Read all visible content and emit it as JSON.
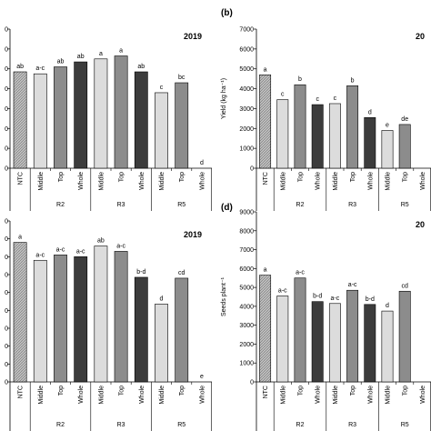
{
  "colors": {
    "ntc_hatch": "#9a9a9a",
    "middle": "#dcdcdc",
    "top": "#8c8c8c",
    "whole": "#3c3c3c",
    "axis": "#000000"
  },
  "chart_data": [
    {
      "panel_label": "",
      "type": "bar",
      "title": "2019",
      "ylabel": "",
      "ylim": [
        0,
        7000
      ],
      "yticks_shown": [
        "0",
        "0",
        "0",
        "0",
        "0",
        "0",
        "0",
        "0"
      ],
      "categories": [
        "NTC",
        "Middle",
        "Top",
        "Whole",
        "Middle",
        "Top",
        "Whole",
        "Middle",
        "Top",
        "Whole"
      ],
      "groups": [
        "R2",
        "R3",
        "R5"
      ],
      "values": [
        4850,
        4750,
        5100,
        5350,
        5500,
        5650,
        4850,
        3800,
        4300,
        0
      ],
      "letters": [
        "ab",
        "a-c",
        "ab",
        "ab",
        "a",
        "a",
        "ab",
        "c",
        "bc",
        "d"
      ]
    },
    {
      "panel_label": "(b)",
      "type": "bar",
      "title": "20",
      "ylabel": "Yield (kg ha⁻¹)",
      "ylim": [
        0,
        7000
      ],
      "yticks_shown": [
        "0",
        "1000",
        "2000",
        "3000",
        "4000",
        "5000",
        "6000",
        "7000"
      ],
      "categories": [
        "NTC",
        "Middle",
        "Top",
        "Whole",
        "Middle",
        "Top",
        "Whole",
        "Middle",
        "Top",
        "Whole"
      ],
      "groups": [
        "R2",
        "R3",
        "R5"
      ],
      "values": [
        4700,
        3450,
        4200,
        3200,
        3250,
        4150,
        2550,
        1900,
        2200,
        null
      ],
      "letters": [
        "a",
        "c",
        "b",
        "c",
        "c",
        "b",
        "d",
        "e",
        "de",
        ""
      ]
    },
    {
      "panel_label": "",
      "type": "bar",
      "title": "2019",
      "ylabel": "",
      "ylim": [
        0,
        9000
      ],
      "yticks_shown": [
        "0",
        "0",
        "0",
        "0",
        "0",
        "0",
        "0",
        "0",
        "0",
        "0"
      ],
      "categories": [
        "NTC",
        "Middle",
        "Top",
        "Whole",
        "Middle",
        "Top",
        "Whole",
        "Middle",
        "Top",
        "Whole"
      ],
      "groups": [
        "R2",
        "R3",
        "R5"
      ],
      "values": [
        7800,
        6800,
        7100,
        7000,
        7600,
        7300,
        5850,
        4350,
        5800,
        0
      ],
      "letters": [
        "a",
        "a-c",
        "a-c",
        "a-c",
        "ab",
        "a-c",
        "b-d",
        "d",
        "cd",
        "e"
      ]
    },
    {
      "panel_label": "(d)",
      "type": "bar",
      "title": "20",
      "ylabel": "Seeds plant⁻¹",
      "ylim": [
        0,
        9000
      ],
      "yticks_shown": [
        "0",
        "1000",
        "2000",
        "3000",
        "4000",
        "5000",
        "6000",
        "7000",
        "8000",
        "9000"
      ],
      "categories": [
        "NTC",
        "Middle",
        "Top",
        "Whole",
        "Middle",
        "Top",
        "Whole",
        "Middle",
        "Top",
        "Whole"
      ],
      "groups": [
        "R2",
        "R3",
        "R5"
      ],
      "values": [
        5650,
        4550,
        5500,
        4250,
        4150,
        4850,
        4100,
        3750,
        4800,
        null
      ],
      "letters": [
        "a",
        "a-c",
        "a-c",
        "b-d",
        "a-c",
        "a-c",
        "b-d",
        "d",
        "cd",
        ""
      ]
    }
  ]
}
